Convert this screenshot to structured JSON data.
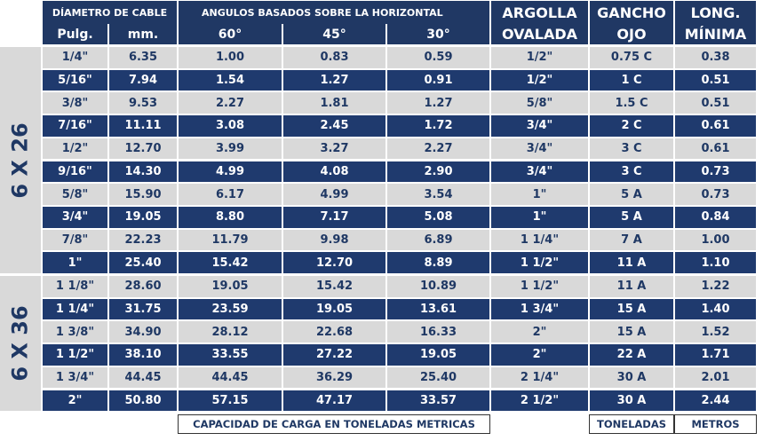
{
  "header": {
    "cable_diameter": "DÍAMETRO DE CABLE",
    "angles": "ANGULOS BASADOS SOBRE LA HORIZONTAL",
    "columns": [
      "Pulg.",
      "mm.",
      "60°",
      "45°",
      "30°"
    ],
    "argolla": [
      "ARGOLLA",
      "OVALADA"
    ],
    "gancho": [
      "GANCHO",
      "OJO"
    ],
    "long": [
      "LONG.",
      "MÍNIMA"
    ]
  },
  "groups": [
    {
      "label": "6 X 26",
      "rows": [
        [
          "1/4\"",
          "6.35",
          "1.00",
          "0.83",
          "0.59",
          "1/2\"",
          "0.75 C",
          "0.38"
        ],
        [
          "5/16\"",
          "7.94",
          "1.54",
          "1.27",
          "0.91",
          "1/2\"",
          "1 C",
          "0.51"
        ],
        [
          "3/8\"",
          "9.53",
          "2.27",
          "1.81",
          "1.27",
          "5/8\"",
          "1.5 C",
          "0.51"
        ],
        [
          "7/16\"",
          "11.11",
          "3.08",
          "2.45",
          "1.72",
          "3/4\"",
          "2 C",
          "0.61"
        ],
        [
          "1/2\"",
          "12.70",
          "3.99",
          "3.27",
          "2.27",
          "3/4\"",
          "3 C",
          "0.61"
        ],
        [
          "9/16\"",
          "14.30",
          "4.99",
          "4.08",
          "2.90",
          "3/4\"",
          "3 C",
          "0.73"
        ],
        [
          "5/8\"",
          "15.90",
          "6.17",
          "4.99",
          "3.54",
          "1\"",
          "5 A",
          "0.73"
        ],
        [
          "3/4\"",
          "19.05",
          "8.80",
          "7.17",
          "5.08",
          "1\"",
          "5 A",
          "0.84"
        ],
        [
          "7/8\"",
          "22.23",
          "11.79",
          "9.98",
          "6.89",
          "1 1/4\"",
          "7 A",
          "1.00"
        ],
        [
          "1\"",
          "25.40",
          "15.42",
          "12.70",
          "8.89",
          "1 1/2\"",
          "11 A",
          "1.10"
        ]
      ]
    },
    {
      "label": "6 X 36",
      "rows": [
        [
          "1 1/8\"",
          "28.60",
          "19.05",
          "15.42",
          "10.89",
          "1 1/2\"",
          "11 A",
          "1.22"
        ],
        [
          "1 1/4\"",
          "31.75",
          "23.59",
          "19.05",
          "13.61",
          "1 3/4\"",
          "15 A",
          "1.40"
        ],
        [
          "1 3/8\"",
          "34.90",
          "28.12",
          "22.68",
          "16.33",
          "2\"",
          "15 A",
          "1.52"
        ],
        [
          "1 1/2\"",
          "38.10",
          "33.55",
          "27.22",
          "19.05",
          "2\"",
          "22 A",
          "1.71"
        ],
        [
          "1 3/4\"",
          "44.45",
          "44.45",
          "36.29",
          "25.40",
          "2 1/4\"",
          "30 A",
          "2.01"
        ],
        [
          "2\"",
          "50.80",
          "57.15",
          "47.17",
          "33.57",
          "2 1/2\"",
          "30 A",
          "2.44"
        ]
      ]
    }
  ],
  "footer": [
    "CAPACIDAD DE CARGA EN TONELADAS METRICAS",
    "TONELADAS",
    "METROS"
  ]
}
